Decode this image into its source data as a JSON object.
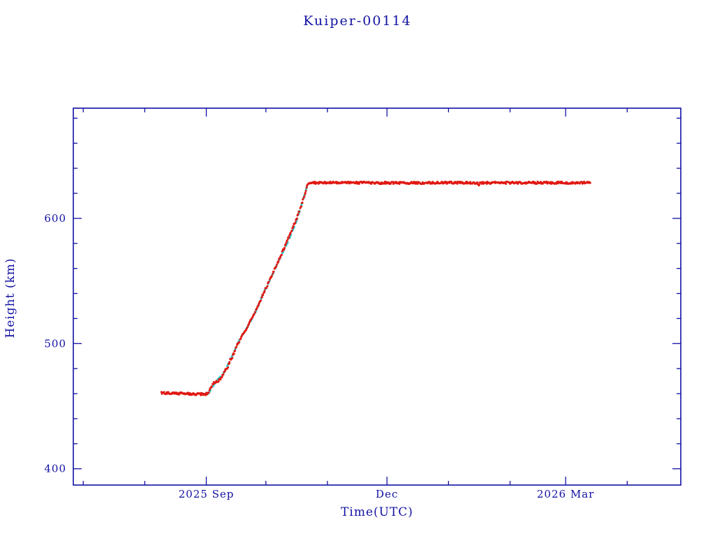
{
  "page": {
    "background": "#ffffff"
  },
  "chart_data": {
    "type": "scatter",
    "title": "Kuiper-00114",
    "xlabel": "Time(UTC)",
    "ylabel": "Height (km)",
    "x_axis_unit": "days since 2025-08-01",
    "x_range": [
      -36,
      270
    ],
    "y_range": [
      387,
      688
    ],
    "x_major_ticks": [
      {
        "day": 31,
        "label": "2025 Sep"
      },
      {
        "day": 122,
        "label": "Dec"
      },
      {
        "day": 212,
        "label": "2026 Mar"
      }
    ],
    "x_minor_tick_days": [
      -31,
      0,
      61,
      92,
      153,
      184,
      243
    ],
    "y_major_ticks": [
      {
        "value": 400,
        "label": "400"
      },
      {
        "value": 500,
        "label": "500"
      },
      {
        "value": 600,
        "label": "600"
      }
    ],
    "y_minor_step": 20,
    "axis_color": "#1111a3",
    "grid": false,
    "legend": null,
    "series": [
      {
        "name": "fit-line",
        "color": "#2fd0d4",
        "style": "dashed-line",
        "profile": [
          [
            32,
            460
          ],
          [
            36,
            470
          ],
          [
            40,
            477
          ],
          [
            44,
            490
          ],
          [
            48,
            504
          ],
          [
            52,
            514
          ],
          [
            56,
            526
          ],
          [
            60,
            541
          ],
          [
            64,
            554
          ],
          [
            68,
            568
          ],
          [
            72,
            581
          ],
          [
            76,
            596
          ],
          [
            79,
            611
          ],
          [
            82,
            627
          ]
        ]
      },
      {
        "name": "measured-height",
        "color": "#e01812",
        "style": "scatter",
        "noise_km": 0.9,
        "point_step_days": 0.3,
        "profile": [
          [
            8.3,
            460.5
          ],
          [
            20,
            460
          ],
          [
            30,
            459.5
          ],
          [
            32,
            460
          ],
          [
            33.5,
            466
          ],
          [
            35,
            469
          ],
          [
            37,
            470
          ],
          [
            38.5,
            472
          ],
          [
            40,
            477
          ],
          [
            42,
            482
          ],
          [
            43,
            487
          ],
          [
            44,
            489
          ],
          [
            46,
            497
          ],
          [
            48,
            503
          ],
          [
            49.5,
            508
          ],
          [
            51,
            510
          ],
          [
            53,
            517
          ],
          [
            55,
            523
          ],
          [
            57,
            530
          ],
          [
            59,
            537
          ],
          [
            61,
            544
          ],
          [
            63,
            551
          ],
          [
            65,
            558
          ],
          [
            67,
            565
          ],
          [
            69,
            572
          ],
          [
            71,
            579
          ],
          [
            73,
            587
          ],
          [
            75,
            594
          ],
          [
            77,
            602
          ],
          [
            79,
            611
          ],
          [
            80.5,
            619
          ],
          [
            82,
            627
          ],
          [
            83,
            628.5
          ],
          [
            100,
            628.5
          ],
          [
            130,
            628.3
          ],
          [
            160,
            628.5
          ],
          [
            167.5,
            628.4
          ],
          [
            168.2,
            626.8
          ],
          [
            169,
            628.4
          ],
          [
            200,
            628.4
          ],
          [
            224.5,
            628.5
          ]
        ]
      }
    ]
  }
}
